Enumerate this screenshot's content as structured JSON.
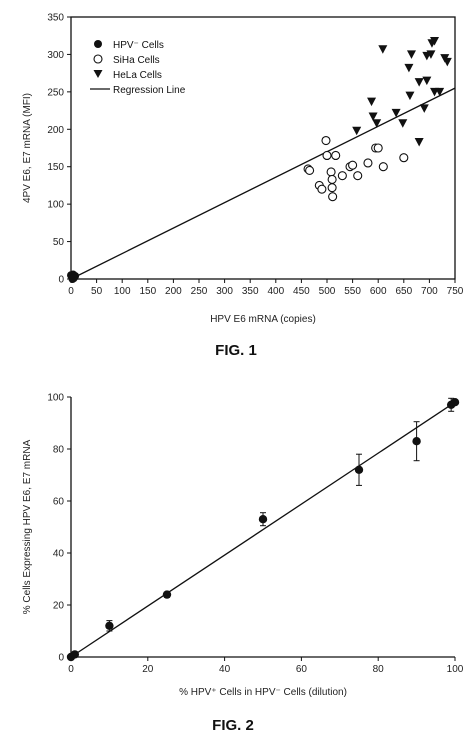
{
  "chart_data": [
    {
      "type": "scatter",
      "caption": "FIG. 1",
      "xlabel": "HPV E6 mRNA (copies)",
      "ylabel": "4PV E6, E7 mRNA (MFI)",
      "xlim": [
        0,
        750
      ],
      "ylim": [
        0,
        350
      ],
      "xticks": [
        0,
        50,
        100,
        150,
        200,
        250,
        300,
        350,
        400,
        450,
        500,
        550,
        600,
        650,
        700,
        750
      ],
      "yticks": [
        0,
        50,
        100,
        150,
        200,
        250,
        300,
        350
      ],
      "grid": false,
      "legend_position": "top-left",
      "series": [
        {
          "name": "HPV⁻ Cells",
          "marker": "filled-circle",
          "points": [
            [
              0,
              5
            ],
            [
              2,
              3
            ],
            [
              4,
              6
            ],
            [
              6,
              2
            ],
            [
              8,
              4
            ],
            [
              3,
              0
            ],
            [
              5,
              1
            ]
          ]
        },
        {
          "name": "SiHa Cells",
          "marker": "open-circle",
          "points": [
            [
              463,
              147
            ],
            [
              466,
              145
            ],
            [
              485,
              125
            ],
            [
              490,
              120
            ],
            [
              498,
              185
            ],
            [
              500,
              165
            ],
            [
              508,
              143
            ],
            [
              510,
              133
            ],
            [
              510,
              122
            ],
            [
              511,
              110
            ],
            [
              517,
              165
            ],
            [
              530,
              138
            ],
            [
              545,
              150
            ],
            [
              550,
              152
            ],
            [
              560,
              138
            ],
            [
              580,
              155
            ],
            [
              595,
              175
            ],
            [
              600,
              175
            ],
            [
              610,
              150
            ],
            [
              650,
              162
            ]
          ]
        },
        {
          "name": "HeLa Cells",
          "marker": "filled-down-triangle",
          "points": [
            [
              558,
              198
            ],
            [
              587,
              237
            ],
            [
              590,
              217
            ],
            [
              597,
              208
            ],
            [
              609,
              307
            ],
            [
              635,
              222
            ],
            [
              648,
              208
            ],
            [
              660,
              282
            ],
            [
              662,
              245
            ],
            [
              665,
              300
            ],
            [
              680,
              263
            ],
            [
              680,
              183
            ],
            [
              690,
              228
            ],
            [
              695,
              265
            ],
            [
              695,
              298
            ],
            [
              703,
              300
            ],
            [
              705,
              315
            ],
            [
              710,
              318
            ],
            [
              710,
              250
            ],
            [
              720,
              250
            ],
            [
              730,
              295
            ],
            [
              735,
              290
            ]
          ]
        }
      ],
      "regression_line": {
        "name": "Regression Line",
        "from": [
          0,
          0
        ],
        "to": [
          750,
          255
        ]
      }
    },
    {
      "type": "scatter",
      "caption": "FIG. 2",
      "xlabel": "% HPV⁺ Cells in HPV⁻ Cells (dilution)",
      "ylabel": "% Cells Expressing HPV E6, E7 mRNA",
      "xlim": [
        0,
        100
      ],
      "ylim": [
        0,
        100
      ],
      "xticks": [
        0,
        20,
        40,
        60,
        80,
        100
      ],
      "yticks": [
        0,
        20,
        40,
        60,
        80,
        100
      ],
      "grid": false,
      "points": [
        {
          "x": 0,
          "y": 0,
          "err": 0
        },
        {
          "x": 1,
          "y": 1,
          "err": 0
        },
        {
          "x": 10,
          "y": 12,
          "err": 2
        },
        {
          "x": 25,
          "y": 24,
          "err": 0
        },
        {
          "x": 50,
          "y": 53,
          "err": 2.5
        },
        {
          "x": 75,
          "y": 72,
          "err": 6
        },
        {
          "x": 90,
          "y": 83,
          "err": 7.5
        },
        {
          "x": 99,
          "y": 97,
          "err": 2.5
        },
        {
          "x": 100,
          "y": 98,
          "err": 0
        }
      ],
      "fit_line": {
        "from": [
          0,
          0
        ],
        "to": [
          100,
          98
        ]
      }
    }
  ]
}
